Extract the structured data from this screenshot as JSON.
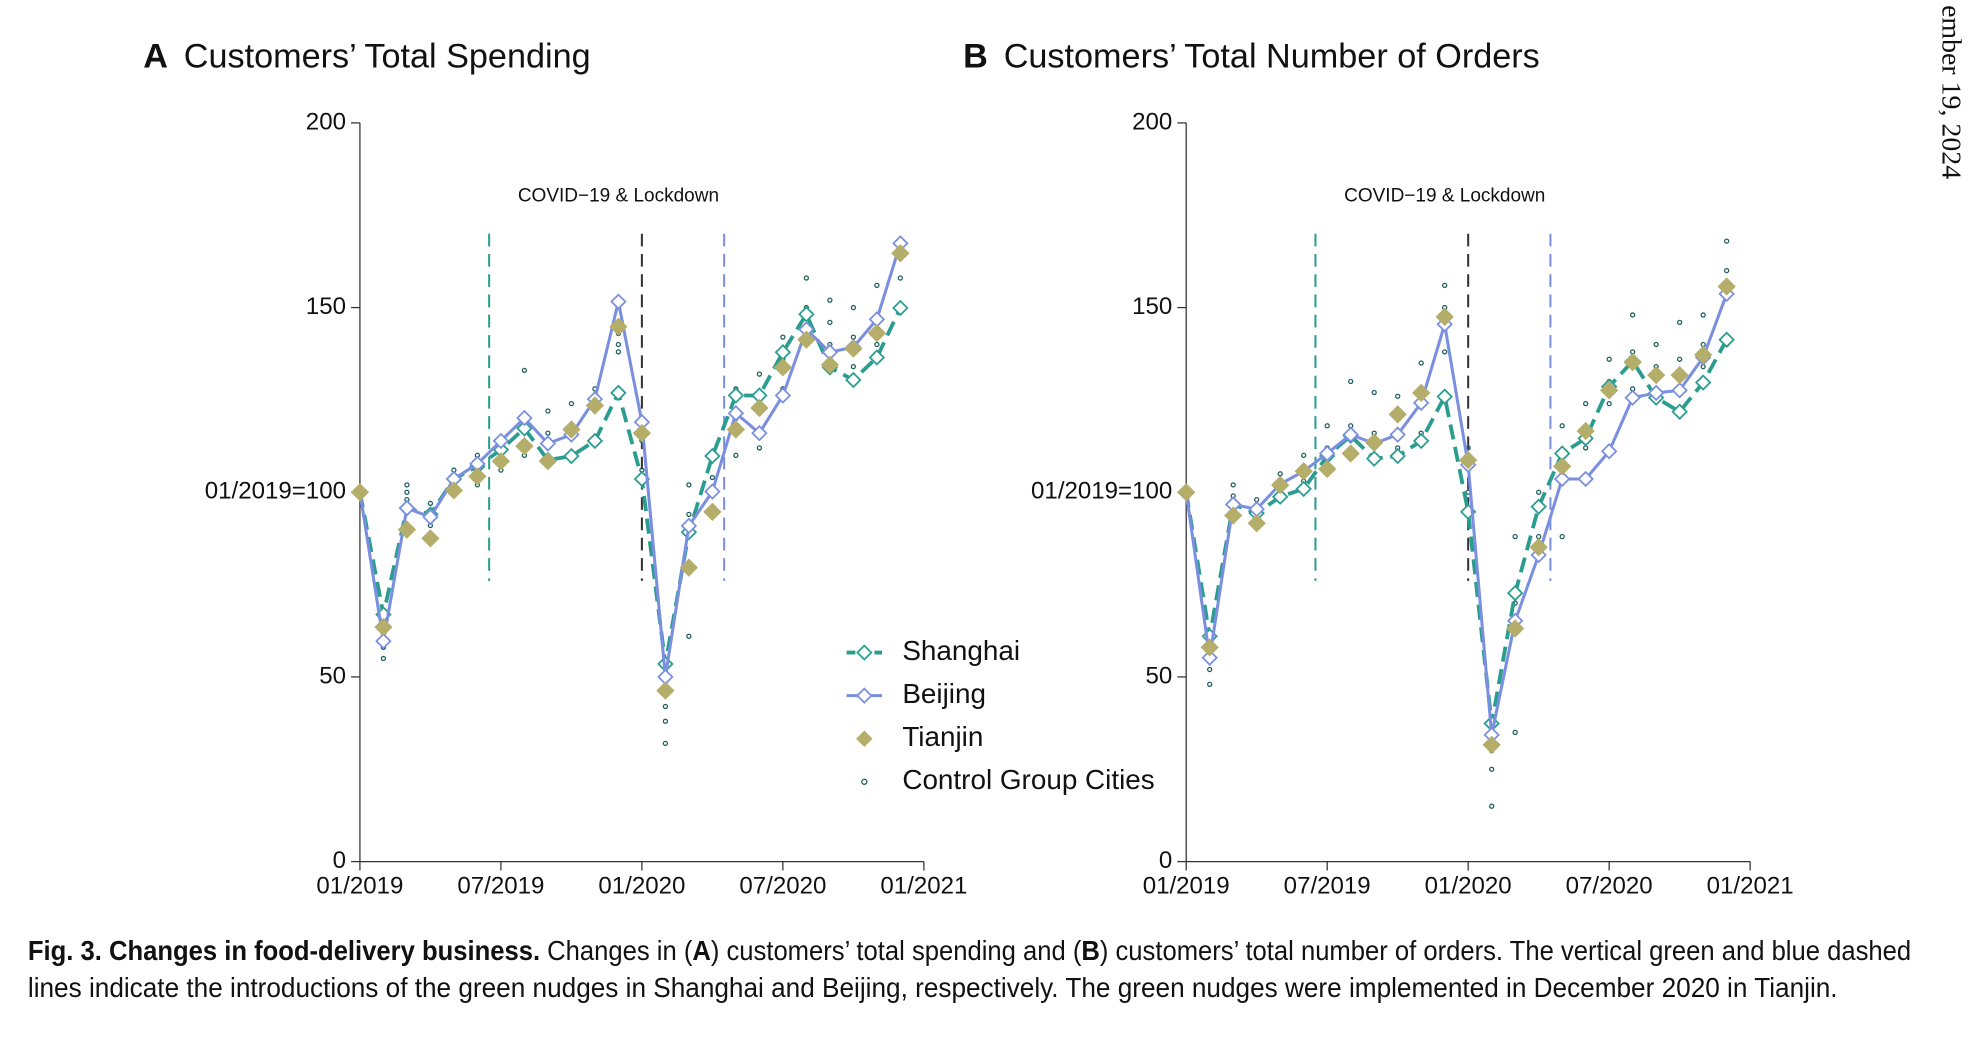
{
  "chart_data": [
    {
      "type": "line",
      "label": "A",
      "title": "Customers’ Total Spending",
      "annotation": "COVID−19 & Lockdown",
      "x": [
        0,
        1,
        2,
        3,
        4,
        5,
        6,
        7,
        8,
        9,
        10,
        11,
        12,
        13,
        14,
        15,
        16,
        17,
        18,
        19,
        20,
        21,
        22,
        23
      ],
      "xlim": [
        0,
        24
      ],
      "xticks": [
        {
          "value": 0,
          "label": "01/2019"
        },
        {
          "value": 6,
          "label": "07/2019"
        },
        {
          "value": 12,
          "label": "01/2020"
        },
        {
          "value": 18,
          "label": "07/2020"
        },
        {
          "value": 24,
          "label": "01/2021"
        }
      ],
      "ylim": [
        0,
        200
      ],
      "yticks": [
        0,
        50,
        {
          "value": 100,
          "label": "01/2019=100"
        },
        150,
        200
      ],
      "legend": true,
      "vlines": [
        {
          "x": 5.5,
          "color": "#2a9d8f",
          "span": [
            76,
            170
          ]
        },
        {
          "x": 12,
          "color": "#333333",
          "span": [
            76,
            170
          ]
        },
        {
          "x": 15.5,
          "color": "#7b8fe0",
          "span": [
            76,
            170
          ]
        }
      ],
      "series": [
        {
          "name": "Shanghai",
          "color": "#2a9d8f",
          "line_style": "dashed",
          "marker": "diamond-open",
          "values": [
            100,
            66.9,
            95.7,
            94,
            103.6,
            107,
            111.5,
            117.3,
            108.7,
            109.8,
            113.9,
            126.9,
            103.6,
            53.5,
            89.2,
            109.8,
            126.2,
            126.2,
            137.9,
            148.2,
            133.8,
            130.4,
            136.5,
            149.9
          ]
        },
        {
          "name": "Beijing",
          "color": "#7b8fe0",
          "line_style": "solid",
          "marker": "diamond-open",
          "values": [
            100,
            59.7,
            95.7,
            93.3,
            103.6,
            107.7,
            113.9,
            120.1,
            113.2,
            115.6,
            125.2,
            151.6,
            119,
            50,
            90.9,
            100.2,
            121.4,
            116,
            126.2,
            144.1,
            137.9,
            139.3,
            146.8,
            167.4
          ]
        },
        {
          "name": "Tianjin",
          "color": "#b5ad6a",
          "line_style": "none",
          "marker": "diamond",
          "values": [
            100,
            63.5,
            89.9,
            87.5,
            100.5,
            104.3,
            108.4,
            112.5,
            108.4,
            117,
            123.5,
            144.8,
            116,
            46.3,
            79.6,
            94.7,
            117,
            122.8,
            133.8,
            141.3,
            134.5,
            138.9,
            143.1,
            164.7
          ]
        },
        {
          "name": "Control Group Cities",
          "color": "#1f5f5b",
          "line_style": "none",
          "marker": "circle-open",
          "x": [
            0,
            0,
            0,
            1,
            1,
            1,
            2,
            2,
            2,
            3,
            3,
            3,
            4,
            4,
            4,
            5,
            5,
            5,
            6,
            6,
            6,
            7,
            7,
            7,
            8,
            8,
            8,
            9,
            9,
            9,
            10,
            10,
            10,
            11,
            11,
            11,
            12,
            12,
            12,
            13,
            13,
            13,
            14,
            14,
            14,
            15,
            15,
            15,
            16,
            16,
            16,
            17,
            17,
            17,
            18,
            18,
            18,
            19,
            19,
            19,
            20,
            20,
            20,
            21,
            21,
            21,
            22,
            22,
            22,
            23,
            23,
            23
          ],
          "values": [
            100,
            100,
            100,
            55,
            58,
            62,
            98,
            100,
            102,
            91,
            95,
            97,
            102,
            104,
            106,
            102,
            106,
            110,
            106,
            110,
            115,
            110,
            120,
            133,
            110,
            116,
            122,
            110,
            118,
            124,
            114,
            122,
            128,
            138,
            140,
            143,
            106,
            114,
            120,
            32,
            38,
            42,
            61,
            94,
            102,
            96,
            104,
            110,
            110,
            120,
            128,
            112,
            124,
            132,
            128,
            136,
            142,
            140,
            150,
            158,
            140,
            146,
            152,
            134,
            142,
            150,
            140,
            148,
            156,
            150,
            158,
            166
          ]
        }
      ]
    },
    {
      "type": "line",
      "label": "B",
      "title": "Customers’ Total Number of Orders",
      "annotation": "COVID−19 & Lockdown",
      "x": [
        0,
        1,
        2,
        3,
        4,
        5,
        6,
        7,
        8,
        9,
        10,
        11,
        12,
        13,
        14,
        15,
        16,
        17,
        18,
        19,
        20,
        21,
        22,
        23
      ],
      "xlim": [
        0,
        24
      ],
      "xticks": [
        {
          "value": 0,
          "label": "01/2019"
        },
        {
          "value": 6,
          "label": "07/2019"
        },
        {
          "value": 12,
          "label": "01/2020"
        },
        {
          "value": 18,
          "label": "07/2020"
        },
        {
          "value": 24,
          "label": "01/2021"
        }
      ],
      "ylim": [
        0,
        200
      ],
      "yticks": [
        0,
        50,
        {
          "value": 100,
          "label": "01/2019=100"
        },
        150,
        200
      ],
      "legend": false,
      "vlines": [
        {
          "x": 5.5,
          "color": "#2a9d8f",
          "span": [
            76,
            170
          ]
        },
        {
          "x": 12,
          "color": "#333333",
          "span": [
            76,
            170
          ]
        },
        {
          "x": 15.5,
          "color": "#7b8fe0",
          "span": [
            76,
            170
          ]
        }
      ],
      "series": [
        {
          "color": "#2a9d8f",
          "line_style": "dashed",
          "marker": "diamond-open",
          "values": [
            100,
            61,
            96.7,
            94.3,
            98.8,
            100.9,
            109.8,
            115.3,
            109.1,
            109.8,
            113.9,
            125.9,
            94.7,
            37.4,
            72.7,
            96.1,
            110.5,
            114.6,
            128.6,
            135.5,
            125.6,
            121.8,
            129.7,
            141.3
          ]
        },
        {
          "color": "#7b8fe0",
          "line_style": "solid",
          "marker": "diamond-open",
          "values": [
            100,
            55.2,
            96.7,
            95.4,
            102.2,
            105.7,
            110.5,
            115.6,
            113.2,
            115.6,
            124.2,
            145.5,
            107.4,
            34.3,
            65.2,
            83,
            103.6,
            103.6,
            111.1,
            125.6,
            126.9,
            127.6,
            136.5,
            153.7
          ]
        },
        {
          "color": "#b5ad6a",
          "line_style": "none",
          "marker": "diamond",
          "values": [
            100,
            58,
            93.7,
            91.6,
            101.9,
            105.7,
            106.3,
            110.5,
            113.5,
            121.1,
            126.9,
            147.5,
            108.7,
            31.6,
            63.1,
            85.1,
            107,
            116.6,
            127.6,
            135.2,
            131.7,
            131.7,
            137.2,
            155.7
          ]
        },
        {
          "color": "#1f5f5b",
          "line_style": "none",
          "marker": "circle-open",
          "x": [
            0,
            0,
            0,
            1,
            1,
            1,
            2,
            2,
            2,
            3,
            3,
            3,
            4,
            4,
            4,
            5,
            5,
            5,
            6,
            6,
            6,
            7,
            7,
            7,
            8,
            8,
            8,
            9,
            9,
            9,
            10,
            10,
            10,
            11,
            11,
            11,
            12,
            12,
            12,
            13,
            13,
            13,
            14,
            14,
            14,
            15,
            15,
            15,
            16,
            16,
            16,
            17,
            17,
            17,
            18,
            18,
            18,
            19,
            19,
            19,
            20,
            20,
            20,
            21,
            21,
            21,
            22,
            22,
            22,
            23,
            23,
            23
          ],
          "values": [
            100,
            100,
            100,
            48,
            52,
            56,
            96,
            99,
            102,
            92,
            95,
            98,
            98,
            102,
            105,
            103,
            106,
            110,
            106,
            112,
            118,
            110,
            118,
            130,
            110,
            116,
            127,
            112,
            120,
            126,
            116,
            126,
            135,
            138,
            150,
            156,
            100,
            108,
            112,
            15,
            25,
            30,
            35,
            70,
            88,
            88,
            96,
            100,
            88,
            104,
            118,
            112,
            118,
            124,
            124,
            130,
            136,
            128,
            138,
            148,
            126,
            134,
            140,
            128,
            136,
            146,
            134,
            140,
            148,
            140,
            160,
            168
          ]
        }
      ]
    }
  ],
  "caption": {
    "lead": "Fig. 3. Changes in food-delivery business.",
    "line1": [
      " Changes in (",
      "A",
      ") customers’ total spending and (",
      "B",
      ") customers’ total number of orders. The vertical green and blue dashed"
    ],
    "line2": "lines indicate the introductions of the green nudges in Shanghai and Beijing, respectively. The green nudges were implemented in December 2020 in Tianjin."
  },
  "side_text": "ember 19, 2024"
}
